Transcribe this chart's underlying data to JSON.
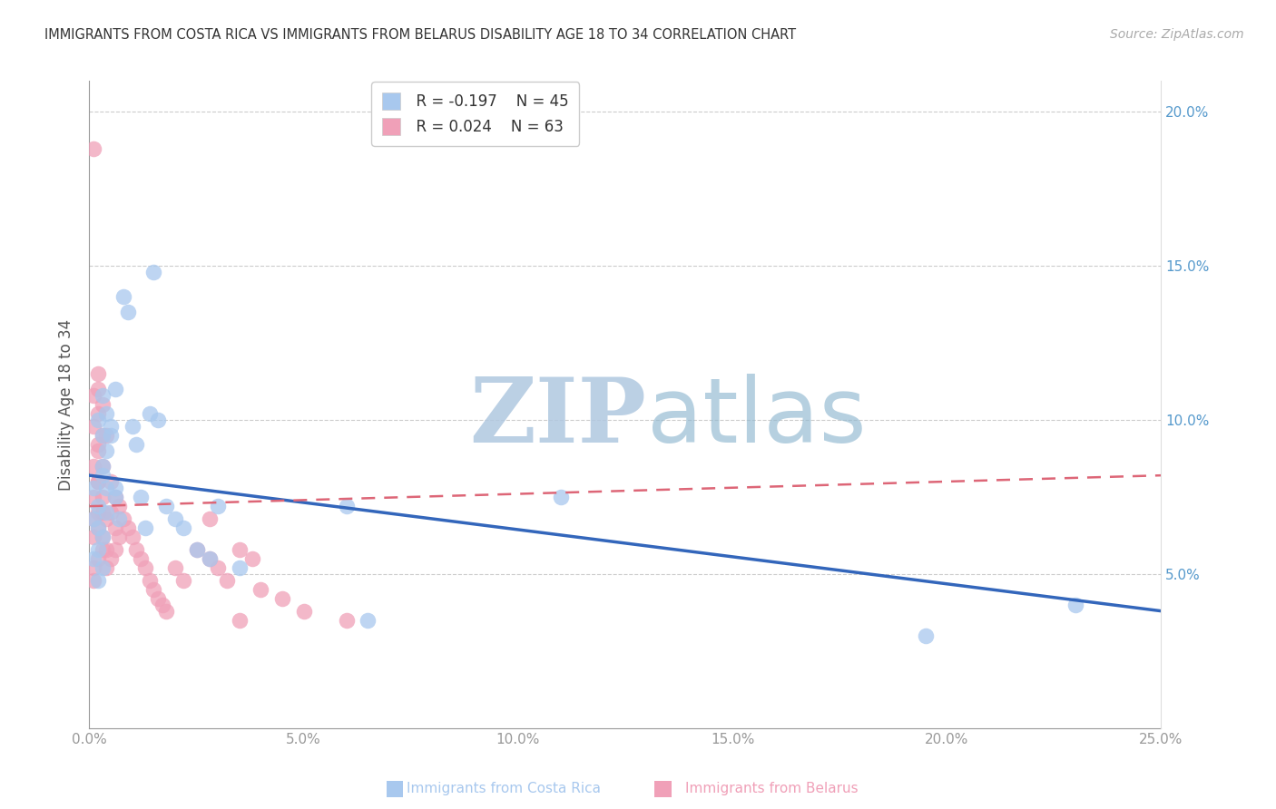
{
  "title": "IMMIGRANTS FROM COSTA RICA VS IMMIGRANTS FROM BELARUS DISABILITY AGE 18 TO 34 CORRELATION CHART",
  "source": "Source: ZipAtlas.com",
  "ylabel_label": "Disability Age 18 to 34",
  "xlim": [
    0.0,
    0.25
  ],
  "ylim": [
    0.0,
    0.21
  ],
  "xticks": [
    0.0,
    0.05,
    0.1,
    0.15,
    0.2,
    0.25
  ],
  "yticks": [
    0.05,
    0.1,
    0.15,
    0.2
  ],
  "xtick_labels": [
    "0.0%",
    "5.0%",
    "10.0%",
    "15.0%",
    "20.0%",
    "25.0%"
  ],
  "right_ytick_labels": [
    "5.0%",
    "10.0%",
    "15.0%",
    "20.0%"
  ],
  "right_yticks": [
    0.05,
    0.1,
    0.15,
    0.2
  ],
  "watermark_zip": "ZIP",
  "watermark_atlas": "atlas",
  "watermark_color_zip": "#b8cfe8",
  "watermark_color_atlas": "#a8c8d8",
  "legend_costa_rica_r": "-0.197",
  "legend_costa_rica_n": "45",
  "legend_belarus_r": "0.024",
  "legend_belarus_n": "63",
  "costa_rica_color": "#a8c8ee",
  "belarus_color": "#f0a0b8",
  "line_costa_rica_color": "#3366bb",
  "line_belarus_color": "#dd6677",
  "background_color": "#ffffff",
  "grid_color": "#cccccc",
  "axis_color": "#999999",
  "title_color": "#333333",
  "source_color": "#aaaaaa",
  "right_axis_color": "#5599cc",
  "cr_line_start_y": 0.082,
  "cr_line_end_y": 0.038,
  "bl_line_start_y": 0.072,
  "bl_line_end_y": 0.082,
  "costa_rica_x": [
    0.001,
    0.002,
    0.001,
    0.002,
    0.003,
    0.002,
    0.001,
    0.003,
    0.002,
    0.003,
    0.004,
    0.003,
    0.002,
    0.004,
    0.003,
    0.005,
    0.004,
    0.003,
    0.006,
    0.005,
    0.004,
    0.006,
    0.007,
    0.006,
    0.008,
    0.009,
    0.01,
    0.012,
    0.011,
    0.013,
    0.015,
    0.014,
    0.016,
    0.018,
    0.02,
    0.022,
    0.025,
    0.028,
    0.03,
    0.035,
    0.06,
    0.065,
    0.11,
    0.195,
    0.23
  ],
  "costa_rica_y": [
    0.078,
    0.072,
    0.068,
    0.065,
    0.062,
    0.058,
    0.055,
    0.052,
    0.048,
    0.082,
    0.078,
    0.095,
    0.1,
    0.09,
    0.085,
    0.095,
    0.102,
    0.108,
    0.11,
    0.098,
    0.07,
    0.075,
    0.068,
    0.078,
    0.14,
    0.135,
    0.098,
    0.075,
    0.092,
    0.065,
    0.148,
    0.102,
    0.1,
    0.072,
    0.068,
    0.065,
    0.058,
    0.055,
    0.072,
    0.052,
    0.072,
    0.035,
    0.075,
    0.03,
    0.04
  ],
  "belarus_x": [
    0.001,
    0.001,
    0.002,
    0.001,
    0.002,
    0.001,
    0.002,
    0.001,
    0.002,
    0.001,
    0.002,
    0.001,
    0.003,
    0.002,
    0.001,
    0.002,
    0.003,
    0.002,
    0.001,
    0.003,
    0.002,
    0.003,
    0.002,
    0.003,
    0.004,
    0.003,
    0.004,
    0.003,
    0.004,
    0.005,
    0.004,
    0.005,
    0.006,
    0.005,
    0.006,
    0.007,
    0.006,
    0.007,
    0.008,
    0.009,
    0.01,
    0.011,
    0.012,
    0.013,
    0.014,
    0.015,
    0.016,
    0.017,
    0.018,
    0.02,
    0.022,
    0.025,
    0.028,
    0.03,
    0.032,
    0.035,
    0.038,
    0.04,
    0.045,
    0.05,
    0.028,
    0.035,
    0.06
  ],
  "belarus_y": [
    0.188,
    0.108,
    0.115,
    0.098,
    0.092,
    0.085,
    0.08,
    0.075,
    0.07,
    0.068,
    0.065,
    0.062,
    0.058,
    0.055,
    0.052,
    0.11,
    0.105,
    0.102,
    0.048,
    0.095,
    0.09,
    0.085,
    0.08,
    0.075,
    0.095,
    0.07,
    0.068,
    0.062,
    0.058,
    0.055,
    0.052,
    0.08,
    0.075,
    0.07,
    0.065,
    0.062,
    0.058,
    0.072,
    0.068,
    0.065,
    0.062,
    0.058,
    0.055,
    0.052,
    0.048,
    0.045,
    0.042,
    0.04,
    0.038,
    0.052,
    0.048,
    0.058,
    0.055,
    0.052,
    0.048,
    0.058,
    0.055,
    0.045,
    0.042,
    0.038,
    0.068,
    0.035,
    0.035
  ]
}
